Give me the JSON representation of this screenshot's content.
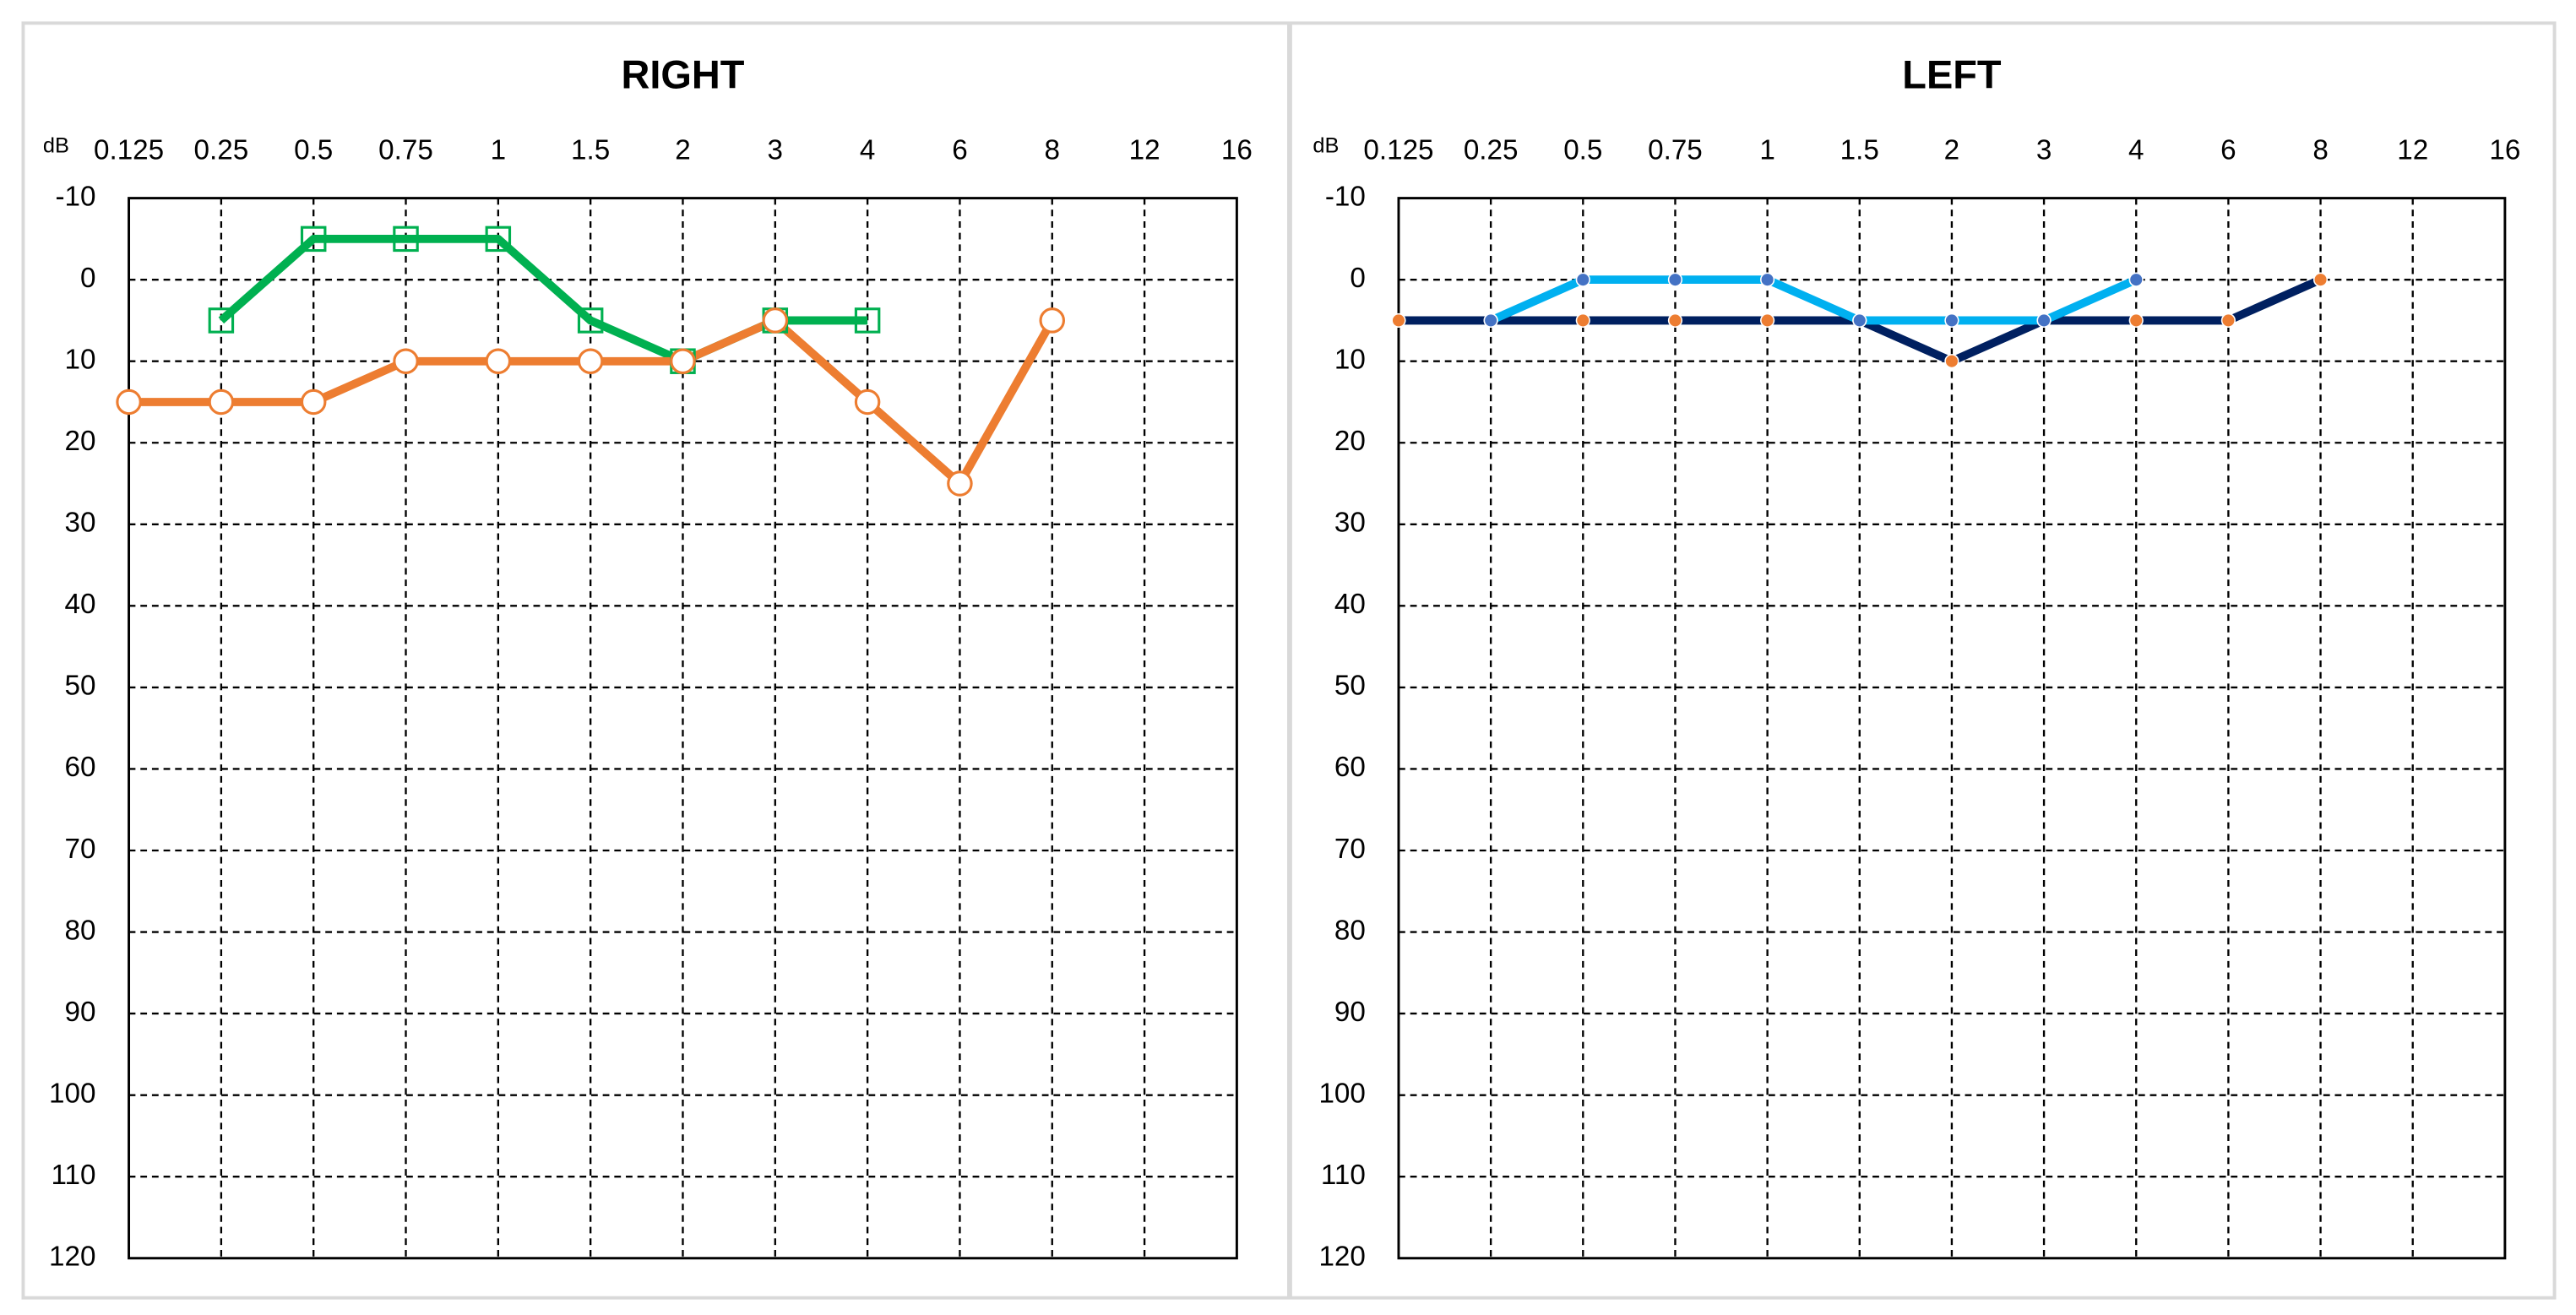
{
  "chart_data": [
    {
      "type": "line",
      "title": "RIGHT",
      "y_axis_label": "dB",
      "categories": [
        "0.125",
        "0.25",
        "0.5",
        "0.75",
        "1",
        "1.5",
        "2",
        "3",
        "4",
        "6",
        "8",
        "12",
        "16"
      ],
      "ylim": [
        -10,
        120
      ],
      "y_inverted": true,
      "yticks": [
        -10,
        0,
        10,
        20,
        30,
        40,
        50,
        60,
        70,
        80,
        90,
        100,
        110,
        120
      ],
      "grid": true,
      "series": [
        {
          "color": "#00b050",
          "marker": "square",
          "marker_color": "#00b050",
          "values": [
            null,
            5,
            -5,
            -5,
            -5,
            5,
            10,
            5,
            5,
            null,
            null,
            null,
            null
          ]
        },
        {
          "color": "#ed7d31",
          "marker": "circle",
          "marker_color": "#ed7d31",
          "values": [
            15,
            15,
            15,
            10,
            10,
            10,
            10,
            5,
            15,
            25,
            5,
            null,
            null
          ]
        }
      ]
    },
    {
      "type": "line",
      "title": "LEFT",
      "y_axis_label": "dB",
      "categories": [
        "0.125",
        "0.25",
        "0.5",
        "0.75",
        "1",
        "1.5",
        "2",
        "3",
        "4",
        "6",
        "8",
        "12",
        "16"
      ],
      "ylim": [
        -10,
        120
      ],
      "y_inverted": true,
      "yticks": [
        -10,
        0,
        10,
        20,
        30,
        40,
        50,
        60,
        70,
        80,
        90,
        100,
        110,
        120
      ],
      "grid": true,
      "series": [
        {
          "color": "#002060",
          "marker": "dot",
          "marker_color": "#ed7d31",
          "values": [
            5,
            5,
            5,
            5,
            5,
            5,
            10,
            5,
            5,
            5,
            0,
            null,
            null
          ]
        },
        {
          "color": "#00b0f0",
          "marker": "dot",
          "marker_color": "#4472c4",
          "values": [
            null,
            5,
            0,
            0,
            0,
            5,
            5,
            5,
            0,
            null,
            null,
            null,
            null
          ]
        }
      ]
    }
  ]
}
